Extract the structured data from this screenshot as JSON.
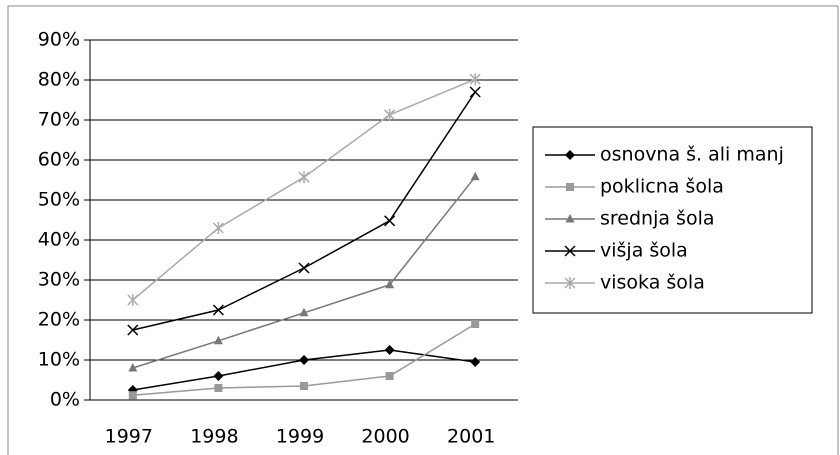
{
  "chart_data": {
    "type": "line",
    "categories": [
      "1997",
      "1998",
      "1999",
      "2000",
      "2001"
    ],
    "series": [
      {
        "name": "osnovna š. ali manj",
        "color": "#000000",
        "marker": "diamond",
        "values": [
          2.5,
          6,
          10,
          12.5,
          9.5
        ]
      },
      {
        "name": "poklicna šola",
        "color": "#999999",
        "marker": "square",
        "values": [
          1.2,
          3,
          3.5,
          6,
          19
        ]
      },
      {
        "name": "srednja šola",
        "color": "#777777",
        "marker": "triangle",
        "values": [
          8,
          14.8,
          21.8,
          28.8,
          55.8
        ]
      },
      {
        "name": "višja šola",
        "color": "#000000",
        "marker": "x",
        "values": [
          17.5,
          22.5,
          33,
          44.8,
          77
        ]
      },
      {
        "name": "visoka šola",
        "color": "#aaaaaa",
        "marker": "asterisk",
        "values": [
          25,
          43,
          55.7,
          71.3,
          80.2
        ]
      }
    ],
    "ylim": [
      0,
      90
    ],
    "yticks": [
      {
        "value": 0,
        "label": "0%"
      },
      {
        "value": 10,
        "label": "10%"
      },
      {
        "value": 20,
        "label": "20%"
      },
      {
        "value": 30,
        "label": "30%"
      },
      {
        "value": 40,
        "label": "40%"
      },
      {
        "value": 50,
        "label": "50%"
      },
      {
        "value": 60,
        "label": "60%"
      },
      {
        "value": 70,
        "label": "70%"
      },
      {
        "value": 80,
        "label": "80%"
      },
      {
        "value": 90,
        "label": "90%"
      }
    ],
    "grid": true,
    "legend": "right"
  }
}
